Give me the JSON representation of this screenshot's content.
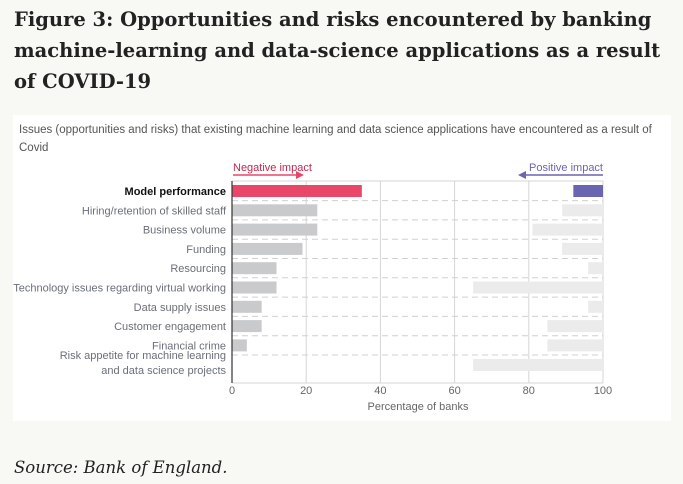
{
  "title": "Figure 3: Opportunities and risks encountered by banking machine-learning and data-science applications as a result of COVID-19",
  "source": "Source: Bank of England.",
  "chart_data": {
    "type": "bar",
    "subtitle": "Issues (opportunities and risks) that existing machine learning and data science applications have encountered as a result of Covid",
    "categories": [
      "Model performance",
      "Hiring/retention of skilled staff",
      "Business volume",
      "Funding",
      "Resourcing",
      "Technology issues regarding virtual working",
      "Data supply issues",
      "Customer engagement",
      "Financial crime",
      "Risk appetite for machine learning and data science projects"
    ],
    "category_lines": [
      [
        "Model performance"
      ],
      [
        "Hiring/retention of skilled staff"
      ],
      [
        "Business volume"
      ],
      [
        "Funding"
      ],
      [
        "Resourcing"
      ],
      [
        "Technology issues regarding virtual working"
      ],
      [
        "Data supply issues"
      ],
      [
        "Customer engagement"
      ],
      [
        "Financial crime"
      ],
      [
        "Risk appetite for machine learning",
        "and data science projects"
      ]
    ],
    "series": [
      {
        "name": "Negative impact",
        "direction": "from 0",
        "values": [
          35,
          23,
          23,
          19,
          12,
          12,
          8,
          8,
          4,
          0
        ]
      },
      {
        "name": "Positive impact",
        "direction": "from 100",
        "values": [
          8,
          11,
          19,
          11,
          4,
          35,
          4,
          15,
          15,
          35
        ]
      }
    ],
    "xlabel": "Percentage of banks",
    "xlim": [
      0,
      100
    ],
    "xticks": [
      0,
      20,
      40,
      60,
      80,
      100
    ],
    "highlight_category": "Model performance",
    "colors": {
      "negative_highlight": "#e8476a",
      "negative": "#c9cacc",
      "positive_highlight": "#6b64b0",
      "positive": "#ebebeb",
      "negative_label": "#c0284e",
      "positive_label": "#6b64b0"
    }
  }
}
